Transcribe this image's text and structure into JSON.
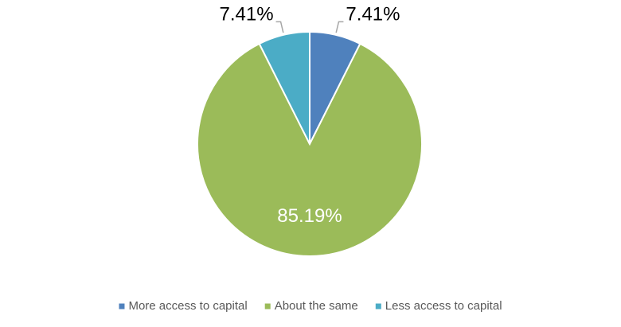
{
  "chart_data": {
    "type": "pie",
    "categories": [
      "More access to capital",
      "About the same",
      "Less access to capital"
    ],
    "values": [
      7.41,
      85.19,
      7.41
    ],
    "value_labels": [
      "7.41%",
      "85.19%",
      "7.41%"
    ],
    "colors": [
      "#4f81bd",
      "#9bbb59",
      "#4bacc6"
    ],
    "legend": "bottom"
  }
}
